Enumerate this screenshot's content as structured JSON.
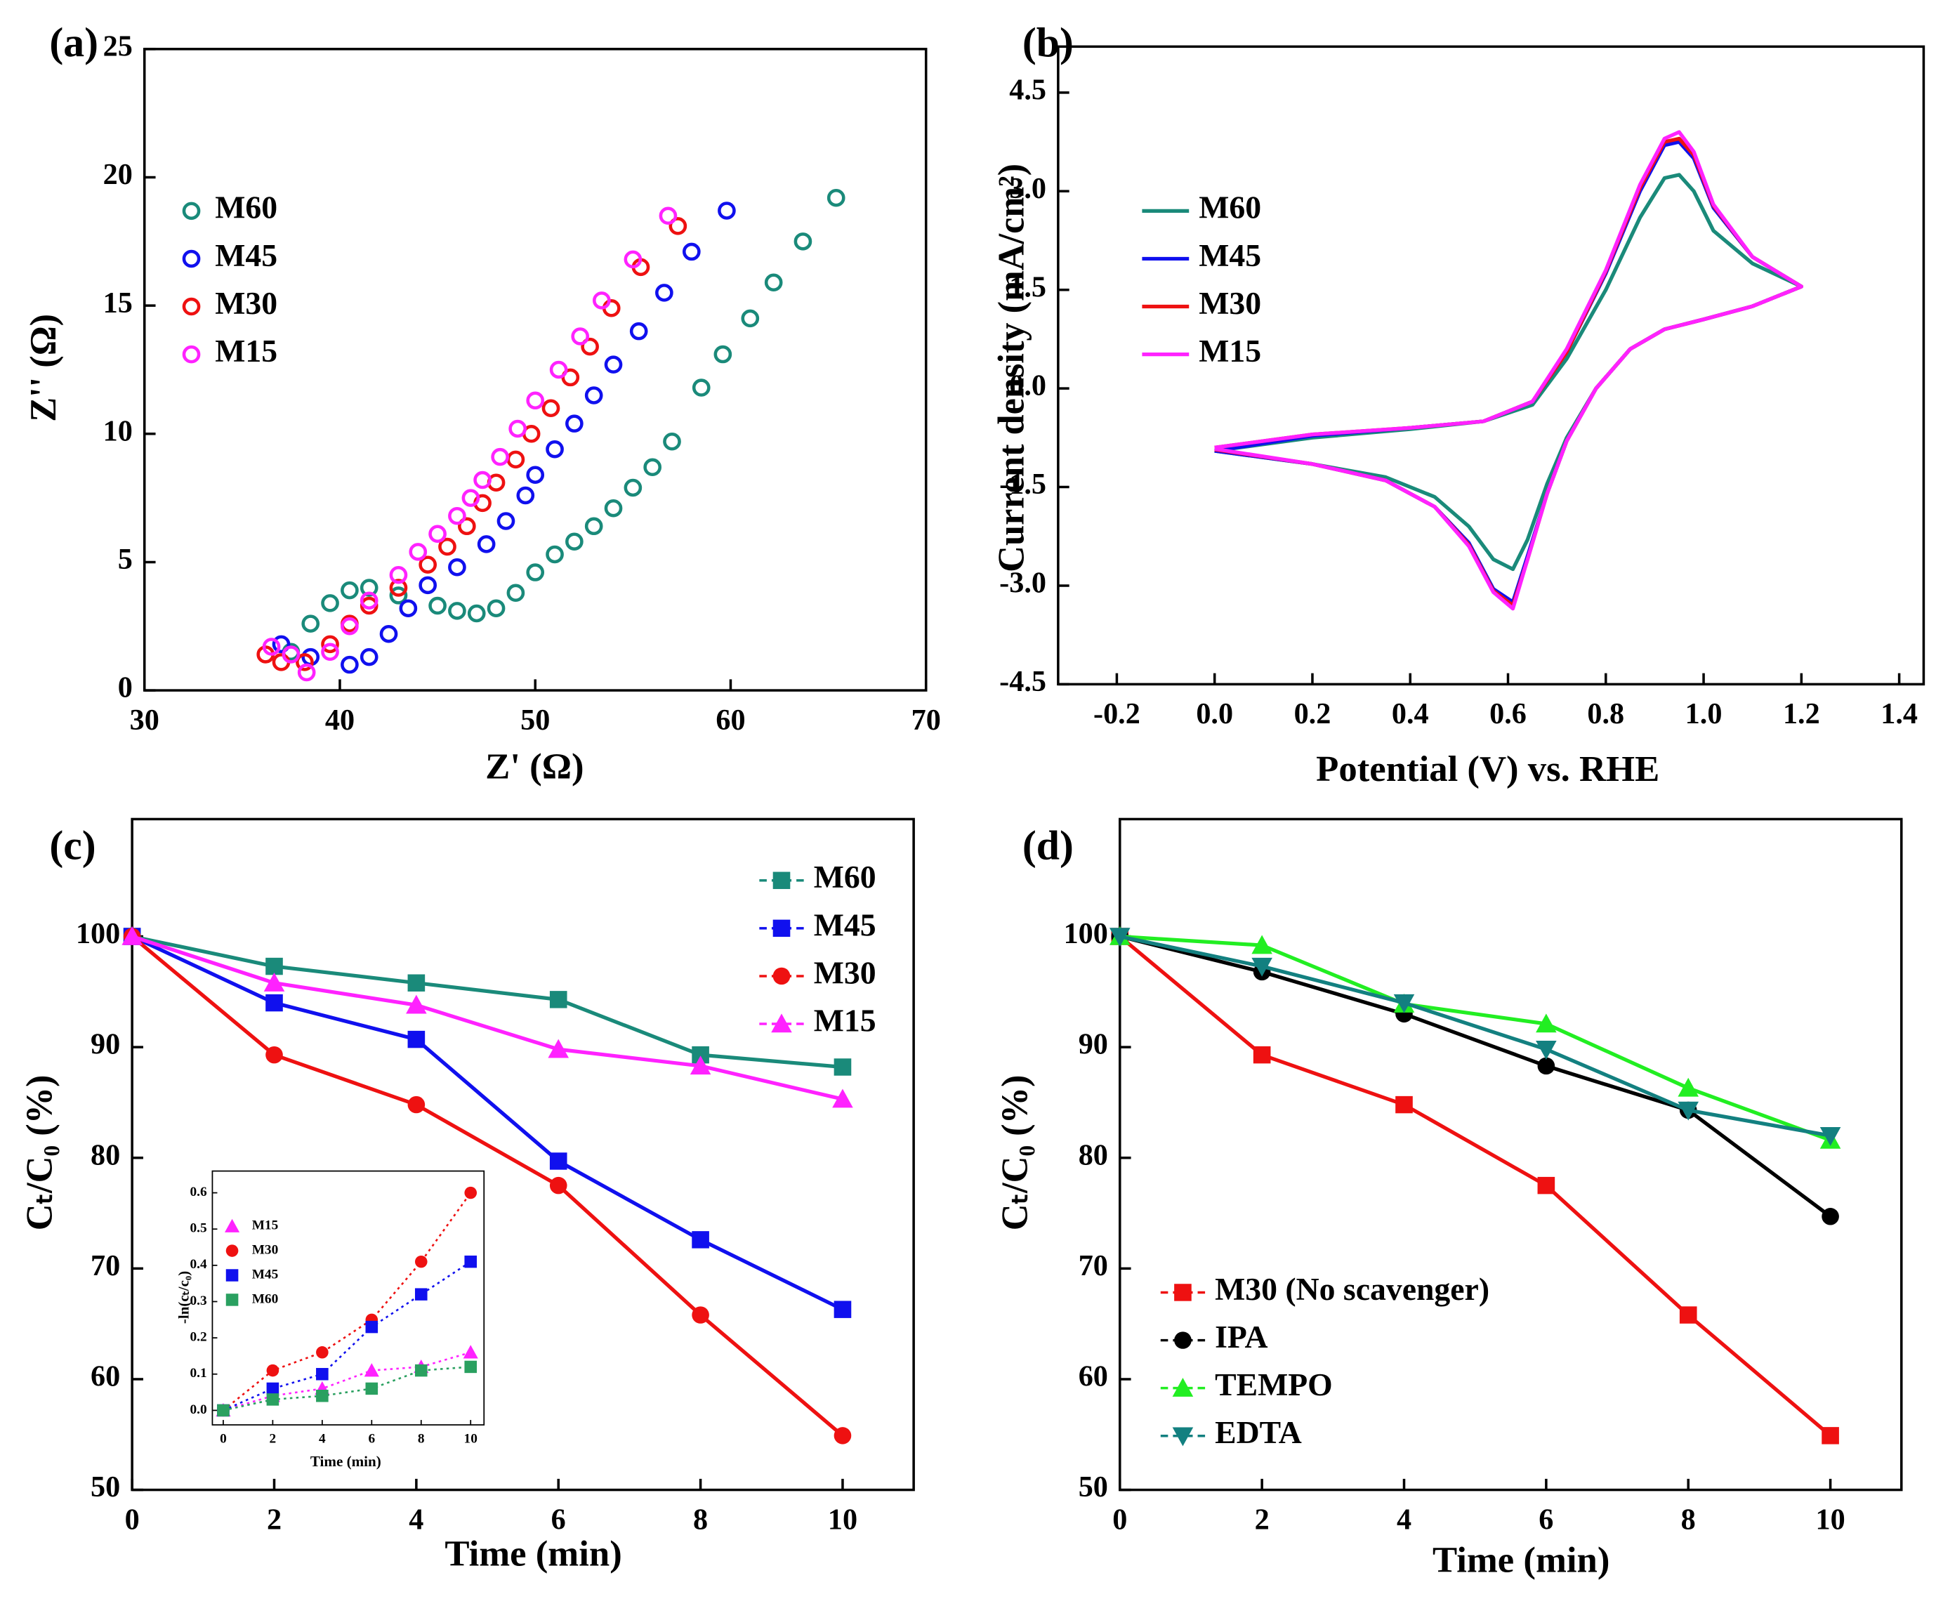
{
  "chart_data": [
    {
      "type": "scatter",
      "title": "(a)",
      "x_label": "Z' (Ω)",
      "y_label": "Z'' (Ω)",
      "xlim": [
        30,
        70
      ],
      "ylim": [
        0,
        25
      ],
      "xticks": [
        30,
        40,
        50,
        60,
        70
      ],
      "yticks": [
        0,
        5,
        10,
        15,
        20,
        25
      ],
      "legend": "upper left",
      "series": [
        {
          "name": "M60",
          "color": "#1a8a7a",
          "marker": "circle-open",
          "x": [
            37.5,
            38.5,
            39.5,
            40.5,
            41.5,
            43,
            45,
            46,
            47,
            48,
            49,
            50,
            51,
            52,
            53,
            54,
            55,
            56,
            57,
            58.5,
            59.6,
            61,
            62.2,
            63.7,
            65.4
          ],
          "values": [
            1.5,
            2.6,
            3.4,
            3.9,
            4.0,
            3.7,
            3.3,
            3.1,
            3.0,
            3.2,
            3.8,
            4.6,
            5.3,
            5.8,
            6.4,
            7.1,
            7.9,
            8.7,
            9.7,
            11.8,
            13.1,
            14.5,
            15.9,
            17.5,
            19.2
          ]
        },
        {
          "name": "M45",
          "color": "#1010ee",
          "marker": "circle-open",
          "x": [
            37,
            38.5,
            40.5,
            41.5,
            42.5,
            43.5,
            44.5,
            46,
            47.5,
            48.5,
            49.5,
            50,
            51,
            52,
            53,
            54,
            55.3,
            56.6,
            58,
            59.8
          ],
          "values": [
            1.8,
            1.3,
            1.0,
            1.3,
            2.2,
            3.2,
            4.1,
            4.8,
            5.7,
            6.6,
            7.6,
            8.4,
            9.4,
            10.4,
            11.5,
            12.7,
            14.0,
            15.5,
            17.1,
            18.7
          ]
        },
        {
          "name": "M30",
          "color": "#ee1111",
          "marker": "circle-open",
          "x": [
            36.2,
            37,
            38.2,
            39.5,
            40.5,
            41.5,
            43,
            44.5,
            45.5,
            46.5,
            47.3,
            48,
            49,
            49.8,
            50.8,
            51.8,
            52.8,
            53.9,
            55.4,
            57.3
          ],
          "values": [
            1.4,
            1.1,
            1.1,
            1.8,
            2.6,
            3.3,
            4.0,
            4.9,
            5.6,
            6.4,
            7.3,
            8.1,
            9.0,
            10.0,
            11.0,
            12.2,
            13.4,
            14.9,
            16.5,
            18.1
          ]
        },
        {
          "name": "M15",
          "color": "#ff22ff",
          "marker": "circle-open",
          "x": [
            36.5,
            37.5,
            38.3,
            39.5,
            40.5,
            41.5,
            43,
            44,
            45,
            46,
            46.7,
            47.3,
            48.2,
            49.1,
            50,
            51.2,
            52.3,
            53.4,
            55,
            56.8
          ],
          "values": [
            1.7,
            1.4,
            0.7,
            1.5,
            2.5,
            3.5,
            4.5,
            5.4,
            6.1,
            6.8,
            7.5,
            8.2,
            9.1,
            10.2,
            11.3,
            12.5,
            13.8,
            15.2,
            16.8,
            18.5
          ]
        }
      ]
    },
    {
      "type": "line",
      "title": "(b)",
      "x_label": "Potential (V) vs. RHE",
      "y_label": "Current density (mA/cm²)",
      "xlim": [
        -0.32,
        1.45
      ],
      "ylim": [
        -4.5,
        5.2
      ],
      "xticks": [
        -0.2,
        {
          "value": 0,
          "label": "0.0"
        },
        0.2,
        0.4,
        0.6,
        0.8,
        {
          "value": 1,
          "label": "1.0"
        },
        1.2,
        1.4
      ],
      "yticks": [
        -4.5,
        {
          "value": -3,
          "label": "-3.0"
        },
        -1.5,
        {
          "value": 0,
          "label": "0.0"
        },
        1.5,
        {
          "value": 3,
          "label": "3.0"
        },
        4.5
      ],
      "legend": "upper left",
      "x": [
        0.0,
        0.2,
        0.4,
        0.55,
        0.65,
        0.72,
        0.8,
        0.87,
        0.92,
        0.95,
        0.98,
        1.02,
        1.1,
        1.2,
        1.1,
        1.0,
        0.92,
        0.85,
        0.78,
        0.72,
        0.68,
        0.64,
        0.61,
        0.57,
        0.52,
        0.45,
        0.35,
        0.2,
        0.0
      ],
      "series": [
        {
          "name": "M60",
          "color": "#1a8a7a",
          "values": [
            -0.95,
            -0.75,
            -0.62,
            -0.5,
            -0.25,
            0.45,
            1.5,
            2.6,
            3.2,
            3.25,
            3.0,
            2.4,
            1.9,
            1.55,
            1.25,
            1.05,
            0.9,
            0.6,
            0.0,
            -0.75,
            -1.45,
            -2.3,
            -2.75,
            -2.6,
            -2.1,
            -1.65,
            -1.35,
            -1.15,
            -0.95
          ]
        },
        {
          "name": "M45",
          "color": "#1010ee",
          "values": [
            -0.95,
            -0.72,
            -0.6,
            -0.5,
            -0.2,
            0.55,
            1.75,
            3.0,
            3.7,
            3.75,
            3.5,
            2.75,
            2.0,
            1.55,
            1.25,
            1.05,
            0.9,
            0.6,
            0.0,
            -0.8,
            -1.6,
            -2.55,
            -3.25,
            -3.05,
            -2.35,
            -1.8,
            -1.4,
            -1.15,
            -0.95
          ]
        },
        {
          "name": "M30",
          "color": "#ee1111",
          "values": [
            -0.9,
            -0.7,
            -0.6,
            -0.5,
            -0.2,
            0.55,
            1.78,
            3.05,
            3.75,
            3.8,
            3.55,
            2.78,
            2.0,
            1.55,
            1.25,
            1.05,
            0.9,
            0.6,
            0.0,
            -0.8,
            -1.6,
            -2.6,
            -3.3,
            -3.08,
            -2.38,
            -1.8,
            -1.4,
            -1.15,
            -0.93
          ]
        },
        {
          "name": "M15",
          "color": "#ff22ff",
          "values": [
            -0.9,
            -0.7,
            -0.6,
            -0.5,
            -0.2,
            0.6,
            1.8,
            3.1,
            3.8,
            3.9,
            3.6,
            2.8,
            2.0,
            1.55,
            1.25,
            1.05,
            0.9,
            0.6,
            0.0,
            -0.8,
            -1.6,
            -2.6,
            -3.35,
            -3.1,
            -2.4,
            -1.8,
            -1.4,
            -1.15,
            -0.92
          ]
        }
      ]
    },
    {
      "type": "line",
      "title": "(c)",
      "x_label": "Time (min)",
      "y_label": "Cₜ/C₀ (%)",
      "xlim": [
        0,
        11
      ],
      "ylim": [
        50,
        110.6
      ],
      "xticks": [
        0,
        2,
        4,
        6,
        8,
        10
      ],
      "yticks": [
        50,
        60,
        70,
        80,
        90,
        100
      ],
      "legend": "upper right",
      "x": [
        0,
        2,
        4,
        6,
        8,
        10
      ],
      "series": [
        {
          "name": "M60",
          "color": "#1a8a7a",
          "marker": "square",
          "values": [
            100,
            97.3,
            95.8,
            94.3,
            89.3,
            88.2
          ]
        },
        {
          "name": "M45",
          "color": "#1010ee",
          "marker": "square",
          "values": [
            100,
            94,
            90.7,
            79.7,
            72.6,
            66.3
          ]
        },
        {
          "name": "M30",
          "color": "#ee1111",
          "marker": "circle",
          "values": [
            100,
            89.3,
            84.8,
            77.5,
            65.8,
            54.9
          ]
        },
        {
          "name": "M15",
          "color": "#ff22ff",
          "marker": "triangle",
          "values": [
            100,
            95.8,
            93.8,
            89.8,
            88.3,
            85.3
          ]
        }
      ]
    },
    {
      "type": "line",
      "x_label": "Time (min)",
      "y_label": "-ln(cₜ/c₀)",
      "xlim": [
        -0.44,
        10.54
      ],
      "ylim": [
        -0.04,
        0.66
      ],
      "xticks": [
        0,
        2,
        4,
        6,
        8,
        10
      ],
      "yticks": [
        {
          "value": 0,
          "label": "0.0"
        },
        0.1,
        0.2,
        0.3,
        0.4,
        0.5,
        0.6
      ],
      "legend": "upper left",
      "line_style": "dotted",
      "x": [
        0,
        2,
        4,
        6,
        8,
        10
      ],
      "series": [
        {
          "name": "M15",
          "color": "#ff22ff",
          "marker": "triangle",
          "values": [
            0,
            0.04,
            0.06,
            0.11,
            0.12,
            0.16
          ]
        },
        {
          "name": "M30",
          "color": "#ee1111",
          "marker": "circle",
          "values": [
            0,
            0.11,
            0.16,
            0.25,
            0.41,
            0.6
          ]
        },
        {
          "name": "M45",
          "color": "#1010ee",
          "marker": "square",
          "values": [
            0,
            0.06,
            0.1,
            0.23,
            0.32,
            0.41
          ]
        },
        {
          "name": "M60",
          "color": "#2aa060",
          "marker": "square",
          "values": [
            0,
            0.03,
            0.04,
            0.06,
            0.11,
            0.12
          ]
        }
      ]
    },
    {
      "type": "line",
      "title": "(d)",
      "x_label": "Time (min)",
      "y_label": "Cₜ/C₀ (%)",
      "xlim": [
        0,
        11
      ],
      "ylim": [
        50,
        110.6
      ],
      "xticks": [
        0,
        2,
        4,
        6,
        8,
        10
      ],
      "yticks": [
        50,
        60,
        70,
        80,
        90,
        100
      ],
      "legend": "lower left",
      "x": [
        0,
        2,
        4,
        6,
        8,
        10
      ],
      "series": [
        {
          "name": "M30 (No scavenger)",
          "color": "#ee1111",
          "marker": "square",
          "values": [
            100,
            89.3,
            84.8,
            77.5,
            65.8,
            54.9
          ]
        },
        {
          "name": "IPA",
          "color": "#000000",
          "marker": "circle",
          "values": [
            100,
            96.8,
            93,
            88.3,
            84.3,
            74.7
          ]
        },
        {
          "name": "TEMPO",
          "color": "#22ee22",
          "marker": "triangle",
          "values": [
            100,
            99.2,
            93.9,
            92.1,
            86.3,
            81.6
          ]
        },
        {
          "name": "EDTA",
          "color": "#138080",
          "marker": "triangle-down",
          "values": [
            100,
            97.3,
            94,
            89.8,
            84.3,
            82
          ]
        }
      ]
    }
  ]
}
